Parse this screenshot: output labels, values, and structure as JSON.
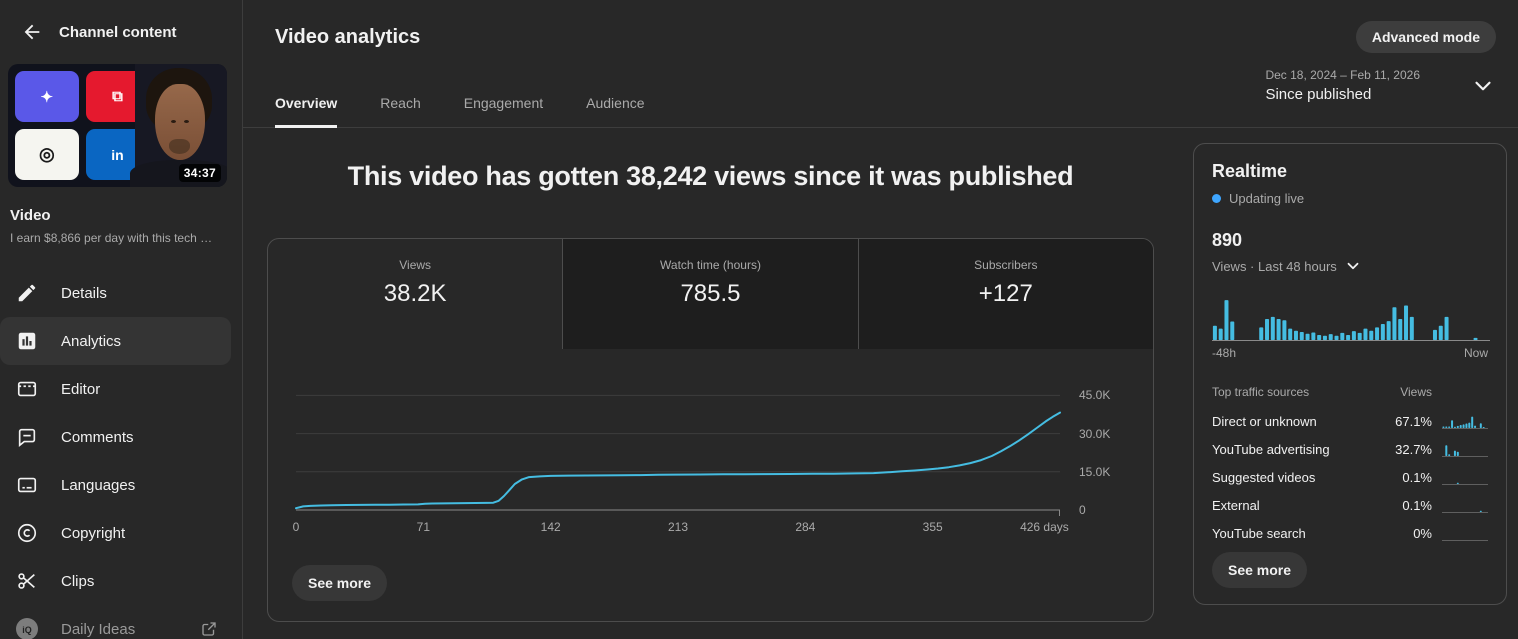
{
  "colors": {
    "accent": "#45bde2",
    "live_dot": "#3ea6ff",
    "grid": "#3d3d3d",
    "axis": "#8a8a8a",
    "spark_axis": "#5f5f5f"
  },
  "sidebar": {
    "header": {
      "title": "Channel content"
    },
    "video": {
      "label": "Video",
      "title": "I earn $8,866 per day with this tech …",
      "duration": "34:37"
    },
    "items": [
      {
        "label": "Details",
        "icon": "pencil-icon",
        "selected": false
      },
      {
        "label": "Analytics",
        "icon": "analytics-icon",
        "selected": true
      },
      {
        "label": "Editor",
        "icon": "editor-icon",
        "selected": false
      },
      {
        "label": "Comments",
        "icon": "comment-icon",
        "selected": false
      },
      {
        "label": "Languages",
        "icon": "subtitles-icon",
        "selected": false
      },
      {
        "label": "Copyright",
        "icon": "copyright-icon",
        "selected": false
      },
      {
        "label": "Clips",
        "icon": "scissors-icon",
        "selected": false
      },
      {
        "label": "Daily Ideas",
        "icon": "vidiq-icon",
        "selected": false,
        "external": true
      }
    ]
  },
  "header": {
    "title": "Video analytics",
    "advanced_mode_label": "Advanced mode",
    "tabs": [
      {
        "label": "Overview",
        "active": true
      },
      {
        "label": "Reach",
        "active": false
      },
      {
        "label": "Engagement",
        "active": false
      },
      {
        "label": "Audience",
        "active": false
      }
    ],
    "date_range": "Dec 18, 2024 – Feb 11, 2026",
    "period": "Since published"
  },
  "overview": {
    "headline": "This video has gotten 38,242 views since it was published",
    "metrics": [
      {
        "label": "Views",
        "value": "38.2K",
        "selected": true
      },
      {
        "label": "Watch time (hours)",
        "value": "785.5",
        "selected": false
      },
      {
        "label": "Subscribers",
        "value": "+127",
        "selected": false
      }
    ],
    "see_more_label": "See more"
  },
  "realtime": {
    "title": "Realtime",
    "status": "Updating live",
    "views_value": "890",
    "views_caption": "Views · Last 48 hours",
    "axis_left": "-48h",
    "axis_right": "Now",
    "table": {
      "col1": "Top traffic sources",
      "col2": "Views",
      "rows": [
        {
          "source": "Direct or unknown",
          "views": "67.1%"
        },
        {
          "source": "YouTube advertising",
          "views": "32.7%"
        },
        {
          "source": "Suggested videos",
          "views": "0.1%"
        },
        {
          "source": "External",
          "views": "0.1%"
        },
        {
          "source": "YouTube search",
          "views": "0%"
        }
      ]
    },
    "see_more_label": "See more"
  },
  "chart_data": [
    {
      "id": "views-line",
      "type": "line",
      "title": "Cumulative views since published",
      "xlabel": "days",
      "ylabel": "Views",
      "xlim": [
        0,
        426
      ],
      "ylim": [
        0,
        47500
      ],
      "grid": true,
      "line_color": "#45bde2",
      "x_ticks": [
        {
          "v": 0,
          "label": "0"
        },
        {
          "v": 71,
          "label": "71"
        },
        {
          "v": 142,
          "label": "142"
        },
        {
          "v": 213,
          "label": "213"
        },
        {
          "v": 284,
          "label": "284"
        },
        {
          "v": 355,
          "label": "355"
        },
        {
          "v": 426,
          "label": "426 days"
        }
      ],
      "y_ticks": [
        {
          "v": 0,
          "label": "0"
        },
        {
          "v": 15000,
          "label": "15.0K"
        },
        {
          "v": 30000,
          "label": "30.0K"
        },
        {
          "v": 45000,
          "label": "45.0K"
        }
      ],
      "x": [
        0,
        4,
        8,
        14,
        20,
        28,
        36,
        44,
        52,
        60,
        68,
        72,
        76,
        82,
        88,
        94,
        100,
        106,
        110,
        113,
        116,
        119,
        122,
        126,
        130,
        136,
        142,
        152,
        162,
        172,
        182,
        192,
        202,
        212,
        225,
        238,
        250,
        262,
        275,
        288,
        300,
        312,
        322,
        330,
        338,
        345,
        352,
        358,
        364,
        370,
        376,
        382,
        388,
        393,
        398,
        403,
        408,
        413,
        418,
        422,
        426
      ],
      "y": [
        700,
        1400,
        1600,
        1750,
        1850,
        1950,
        2000,
        2050,
        2100,
        2150,
        2200,
        2450,
        2550,
        2600,
        2650,
        2700,
        2750,
        2800,
        2850,
        3600,
        5500,
        7800,
        10200,
        12000,
        12900,
        13200,
        13400,
        13500,
        13550,
        13600,
        13650,
        13700,
        13800,
        13900,
        13950,
        14000,
        14050,
        14100,
        14150,
        14200,
        14250,
        14350,
        14500,
        14800,
        15200,
        15500,
        15900,
        16300,
        16800,
        17500,
        18400,
        19600,
        21200,
        23000,
        25000,
        27200,
        29600,
        32200,
        34800,
        36600,
        38242
      ]
    },
    {
      "id": "realtime-bars",
      "type": "bar",
      "title": "Views · Last 48 hours",
      "bar_color": "#45bde2",
      "ymax": 1,
      "values": [
        0.34,
        0.27,
        0.95,
        0.44,
        0,
        0,
        0,
        0,
        0.3,
        0.5,
        0.55,
        0.5,
        0.47,
        0.27,
        0.22,
        0.19,
        0.15,
        0.18,
        0.12,
        0.1,
        0.14,
        0.1,
        0.17,
        0.12,
        0.21,
        0.17,
        0.27,
        0.22,
        0.3,
        0.38,
        0.45,
        0.78,
        0.5,
        0.82,
        0.55,
        0,
        0,
        0,
        0.24,
        0.34,
        0.55,
        0,
        0,
        0,
        0,
        0.05,
        0,
        0
      ]
    },
    {
      "id": "spark-direct",
      "type": "bar",
      "title": "Direct or unknown trend",
      "bar_color": "#45bde2",
      "values": [
        0.12,
        0.12,
        0.12,
        0.65,
        0.1,
        0.18,
        0.25,
        0.3,
        0.38,
        0.45,
        0.95,
        0.2,
        0,
        0.4,
        0.05,
        0
      ]
    },
    {
      "id": "spark-ads",
      "type": "bar",
      "title": "YouTube advertising trend",
      "bar_color": "#45bde2",
      "values": [
        0,
        0.9,
        0.15,
        0,
        0.45,
        0.35,
        0,
        0,
        0,
        0,
        0,
        0,
        0,
        0,
        0,
        0
      ]
    },
    {
      "id": "spark-suggested",
      "type": "bar",
      "title": "Suggested videos trend",
      "bar_color": "#45bde2",
      "values": [
        0,
        0,
        0,
        0,
        0,
        0.1,
        0,
        0,
        0,
        0,
        0,
        0,
        0,
        0,
        0,
        0
      ]
    },
    {
      "id": "spark-external",
      "type": "bar",
      "title": "External trend",
      "bar_color": "#45bde2",
      "values": [
        0,
        0,
        0,
        0,
        0,
        0,
        0,
        0,
        0,
        0,
        0,
        0,
        0,
        0.1,
        0,
        0
      ]
    },
    {
      "id": "spark-search",
      "type": "bar",
      "title": "YouTube search trend",
      "bar_color": "#45bde2",
      "values": [
        0,
        0,
        0,
        0,
        0,
        0,
        0,
        0,
        0,
        0,
        0,
        0,
        0,
        0,
        0,
        0
      ]
    }
  ]
}
